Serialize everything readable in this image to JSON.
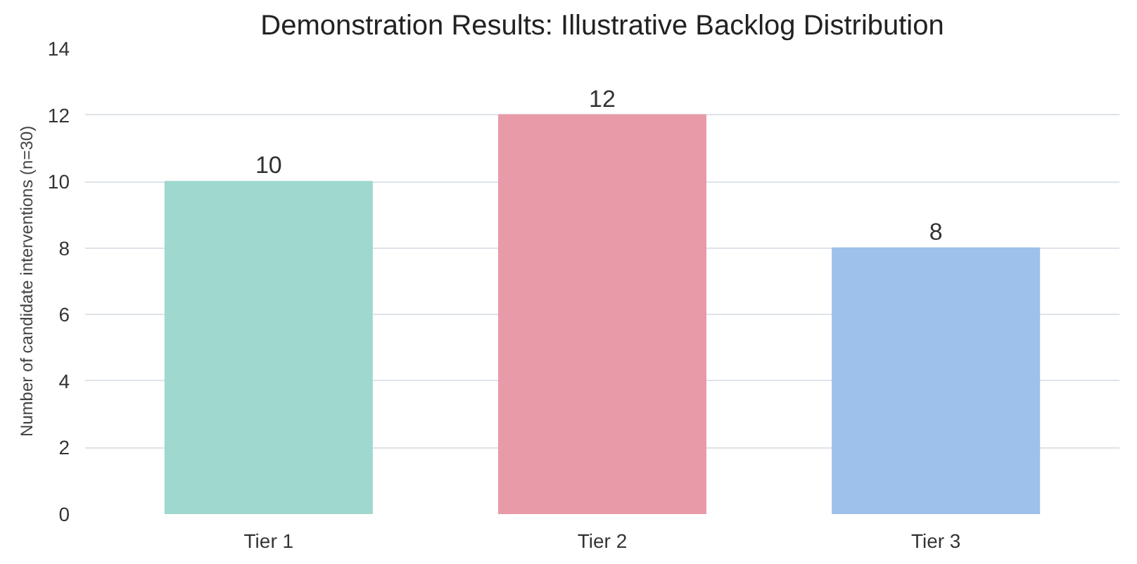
{
  "chart_data": {
    "type": "bar",
    "title": "Demonstration Results: Illustrative Backlog Distribution",
    "ylabel": "Number of candidate interventions (n=30)",
    "categories": [
      "Tier 1",
      "Tier 2",
      "Tier 3"
    ],
    "values": [
      10,
      12,
      8
    ],
    "colors": [
      "#9ed8cf",
      "#e89aa8",
      "#9dc1ea"
    ],
    "ylim": [
      0,
      14
    ],
    "yticks": [
      0,
      2,
      4,
      6,
      8,
      10,
      12,
      14
    ],
    "grid": "y",
    "data_labels": true
  }
}
